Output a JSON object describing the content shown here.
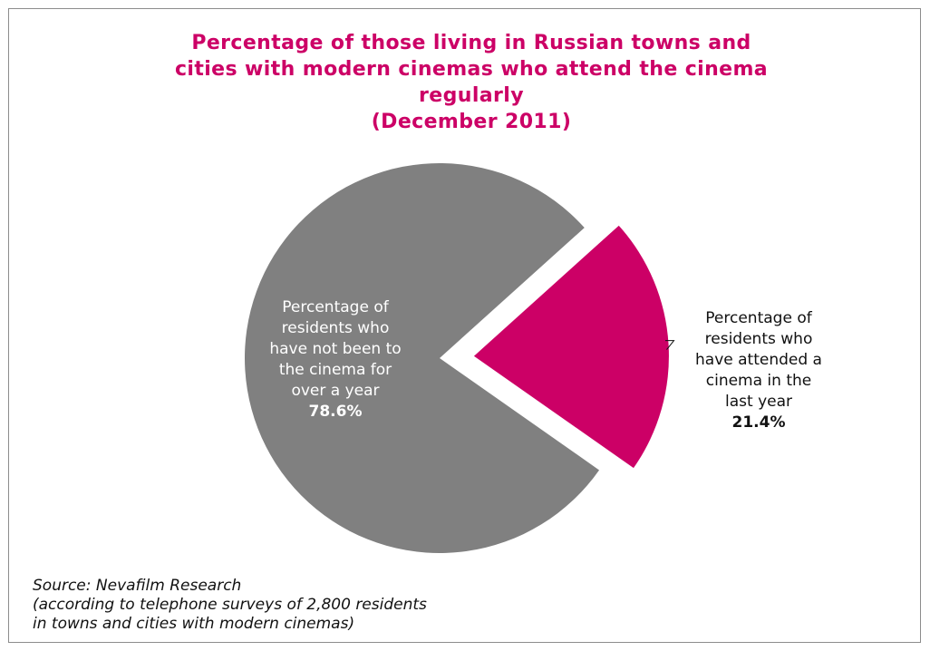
{
  "colors": {
    "accent": "#cc0066",
    "grey_slice": "#808080"
  },
  "chart_data": {
    "type": "pie",
    "title_lines": [
      "Percentage of those living in Russian towns and",
      "cities with modern cinemas who attend the cinema",
      "regularly",
      "(December 2011)"
    ],
    "slices": [
      {
        "label_lines": [
          "Percentage of",
          "residents who",
          "have not been to",
          "the cinema for",
          "over a year"
        ],
        "value": 78.6,
        "value_label": "78.6%",
        "color": "#808080",
        "exploded": false
      },
      {
        "label_lines": [
          "Percentage of",
          "residents who",
          "have attended a",
          "cinema in the",
          "last year"
        ],
        "value": 21.4,
        "value_label": "21.4%",
        "color": "#cc0066",
        "exploded": true
      }
    ],
    "source_lines": [
      "Source: Nevafilm Research",
      "(according to telephone surveys of 2,800 residents",
      "in towns and cities with modern cinemas)"
    ]
  }
}
